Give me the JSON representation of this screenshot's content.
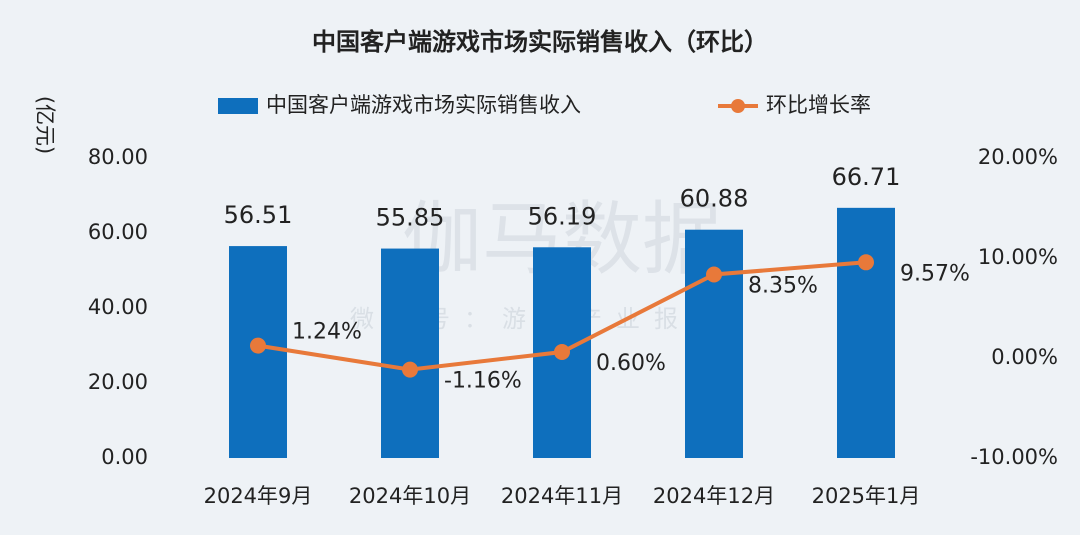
{
  "chart_data": {
    "type": "bar_line",
    "title": "中国客户端游戏市场实际销售收入（环比）",
    "y_label": "(亿元)",
    "watermark": "伽马数据",
    "watermark_sub": "微信号：游戏产业报告",
    "categories": [
      "2024年9月",
      "2024年10月",
      "2024年11月",
      "2024年12月",
      "2025年1月"
    ],
    "series": [
      {
        "name": "中国客户端游戏市场实际销售收入",
        "type": "bar",
        "color": "#0e6fbd",
        "values": [
          56.51,
          55.85,
          56.19,
          60.88,
          66.71
        ]
      },
      {
        "name": "环比增长率",
        "type": "line",
        "axis": "y2",
        "color": "#e8793a",
        "values": [
          1.24,
          -1.16,
          0.6,
          8.35,
          9.57
        ],
        "value_labels": [
          "1.24%",
          "-1.16%",
          "0.60%",
          "8.35%",
          "9.57%"
        ]
      }
    ],
    "ylim": [
      0,
      80
    ],
    "yticks": [
      {
        "value": 0,
        "label": "0.00"
      },
      {
        "value": 20,
        "label": "20.00"
      },
      {
        "value": 40,
        "label": "40.00"
      },
      {
        "value": 60,
        "label": "60.00"
      },
      {
        "value": 80,
        "label": "80.00"
      }
    ],
    "y2lim": [
      -10,
      20
    ],
    "y2ticks": [
      {
        "value": -10,
        "label": "-10.00%"
      },
      {
        "value": 0,
        "label": "0.00%"
      },
      {
        "value": 10,
        "label": "10.00%"
      },
      {
        "value": 20,
        "label": "20.00%"
      }
    ],
    "legend": "top"
  }
}
